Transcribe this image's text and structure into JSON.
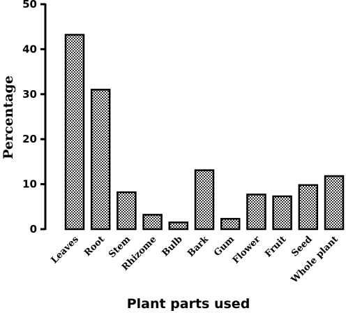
{
  "chart_data": {
    "type": "bar",
    "title": "",
    "xlabel": "Plant parts used",
    "ylabel": "Percentage",
    "ylim": [
      0,
      50
    ],
    "yticks": [
      0,
      10,
      20,
      30,
      40,
      50
    ],
    "categories": [
      "Leaves",
      "Root",
      "Stem",
      "Rhizome",
      "Bulb",
      "Bark",
      "Gum",
      "Flower",
      "Fruit",
      "Seed",
      "Whole plant"
    ],
    "values": [
      43.2,
      31.0,
      8.2,
      3.2,
      1.5,
      13.1,
      2.3,
      7.7,
      7.3,
      9.8,
      11.8
    ],
    "bar_fill_pattern": "checkered",
    "colors": {
      "bar_stroke": "#000000",
      "bar_light": "#ffffff",
      "bar_dark": "#333333"
    },
    "grid": false,
    "legend": "none"
  }
}
